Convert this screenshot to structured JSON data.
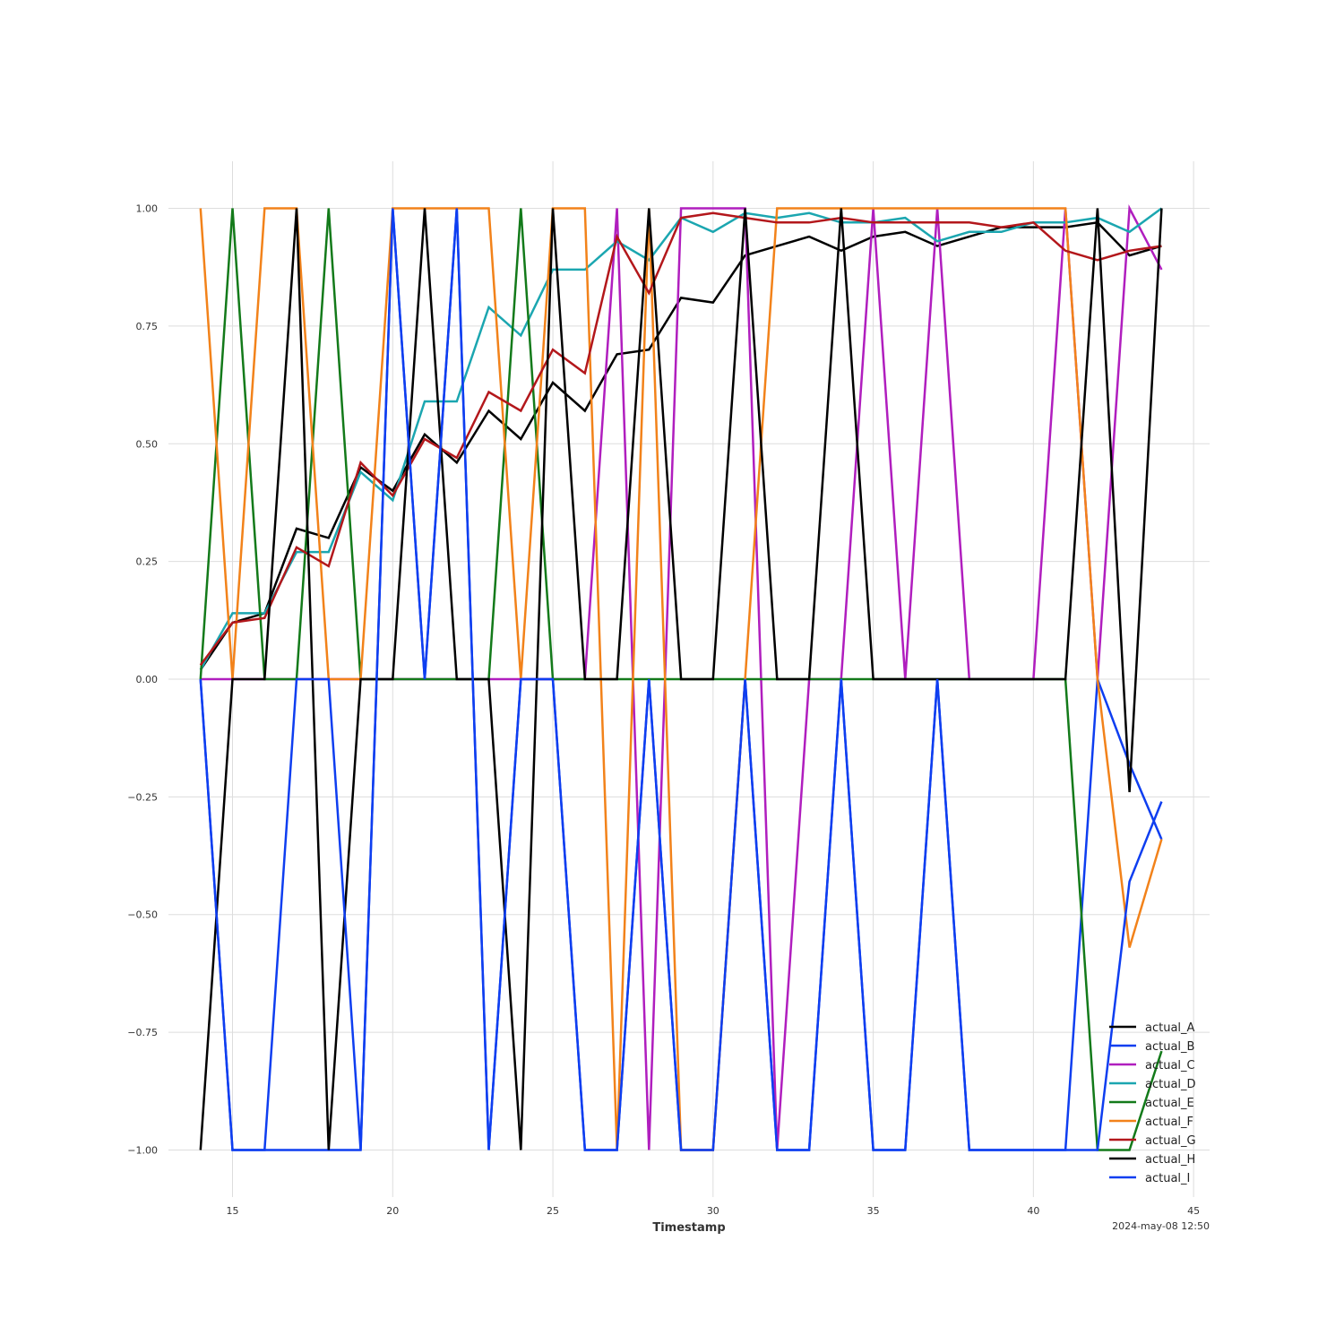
{
  "chart_data": {
    "type": "line",
    "title": "",
    "xlabel": "Timestamp",
    "ylabel": "",
    "timestamp_note": "2024-may-08 12:50",
    "xlim": [
      13,
      45.5
    ],
    "ylim": [
      -1.1,
      1.1
    ],
    "x_ticks": [
      15,
      20,
      25,
      30,
      35,
      40,
      45
    ],
    "y_ticks": [
      -1.0,
      -0.75,
      -0.5,
      -0.25,
      0.0,
      0.25,
      0.5,
      0.75,
      1.0
    ],
    "y_tick_labels": [
      "−1.00",
      "−0.75",
      "−0.50",
      "−0.25",
      "0.00",
      "0.25",
      "0.50",
      "0.75",
      "1.00"
    ],
    "grid": true,
    "legend_position": "bottom-right",
    "x": [
      14,
      15,
      16,
      17,
      18,
      19,
      20,
      21,
      22,
      23,
      24,
      25,
      26,
      27,
      28,
      29,
      30,
      31,
      32,
      33,
      34,
      35,
      36,
      37,
      38,
      39,
      40,
      41,
      42,
      43,
      44
    ],
    "series": [
      {
        "name": "actual_A",
        "color": "#000000",
        "values": [
          0.02,
          0.12,
          0.14,
          0.32,
          0.3,
          0.45,
          0.4,
          0.52,
          0.46,
          0.57,
          0.51,
          0.63,
          0.57,
          0.69,
          0.7,
          0.81,
          0.8,
          0.9,
          0.92,
          0.94,
          0.91,
          0.94,
          0.95,
          0.92,
          0.94,
          0.96,
          0.96,
          0.96,
          0.97,
          0.9,
          0.92
        ]
      },
      {
        "name": "actual_B",
        "color": "#0e3ef0",
        "values": [
          0,
          -1,
          -1,
          -1,
          -1,
          -1,
          1,
          0,
          1,
          -1,
          0,
          0,
          -1,
          -1,
          0,
          -1,
          -1,
          0,
          -1,
          -1,
          0,
          -1,
          -1,
          0,
          -1,
          -1,
          -1,
          -1,
          0,
          -0.18,
          -0.34
        ]
      },
      {
        "name": "actual_C",
        "color": "#b01ebe",
        "values": [
          0,
          0,
          0,
          0,
          0,
          0,
          0,
          0,
          0,
          0,
          0,
          0,
          0,
          1,
          -1,
          1,
          1,
          1,
          -1,
          0,
          0,
          1,
          0,
          1,
          0,
          0,
          0,
          1,
          0,
          1,
          0.87
        ]
      },
      {
        "name": "actual_D",
        "color": "#1ba6b0",
        "values": [
          0.02,
          0.14,
          0.14,
          0.27,
          0.27,
          0.44,
          0.38,
          0.59,
          0.59,
          0.79,
          0.73,
          0.87,
          0.87,
          0.93,
          0.89,
          0.98,
          0.95,
          0.99,
          0.98,
          0.99,
          0.97,
          0.97,
          0.98,
          0.93,
          0.95,
          0.95,
          0.97,
          0.97,
          0.98,
          0.95,
          1.0
        ]
      },
      {
        "name": "actual_E",
        "color": "#137a1a",
        "values": [
          0,
          1,
          0,
          0,
          1,
          0,
          0,
          0,
          0,
          0,
          1,
          0,
          0,
          0,
          0,
          0,
          0,
          0,
          0,
          0,
          0,
          0,
          0,
          0,
          0,
          0,
          0,
          0,
          -1,
          -1,
          -0.79
        ]
      },
      {
        "name": "actual_F",
        "color": "#f2821a",
        "values": [
          1,
          0,
          1,
          1,
          0,
          0,
          1,
          1,
          1,
          1,
          0,
          1,
          1,
          -1,
          1,
          -1,
          -1,
          0,
          1,
          1,
          1,
          1,
          1,
          1,
          1,
          1,
          1,
          1,
          0,
          -0.57,
          -0.34
        ]
      },
      {
        "name": "actual_G",
        "color": "#b3171b",
        "values": [
          0.03,
          0.12,
          0.13,
          0.28,
          0.24,
          0.46,
          0.39,
          0.51,
          0.47,
          0.61,
          0.57,
          0.7,
          0.65,
          0.94,
          0.82,
          0.98,
          0.99,
          0.98,
          0.97,
          0.97,
          0.98,
          0.97,
          0.97,
          0.97,
          0.97,
          0.96,
          0.97,
          0.91,
          0.89,
          0.91,
          0.92
        ]
      },
      {
        "name": "actual_H",
        "color": "#000000",
        "values": [
          -1,
          0,
          0,
          1,
          -1,
          0,
          0,
          1,
          0,
          0,
          -1,
          1,
          0,
          0,
          1,
          0,
          0,
          1,
          0,
          0,
          1,
          0,
          0,
          0,
          0,
          0,
          0,
          0,
          1,
          -0.24,
          1
        ]
      },
      {
        "name": "actual_I",
        "color": "#0e3ef0",
        "values": [
          0,
          -1,
          -1,
          0,
          0,
          -1,
          1,
          0,
          1,
          -1,
          0,
          0,
          -1,
          -1,
          0,
          -1,
          -1,
          0,
          -1,
          -1,
          0,
          -1,
          -1,
          0,
          -1,
          -1,
          -1,
          -1,
          -1,
          -0.43,
          -0.26
        ]
      }
    ]
  }
}
